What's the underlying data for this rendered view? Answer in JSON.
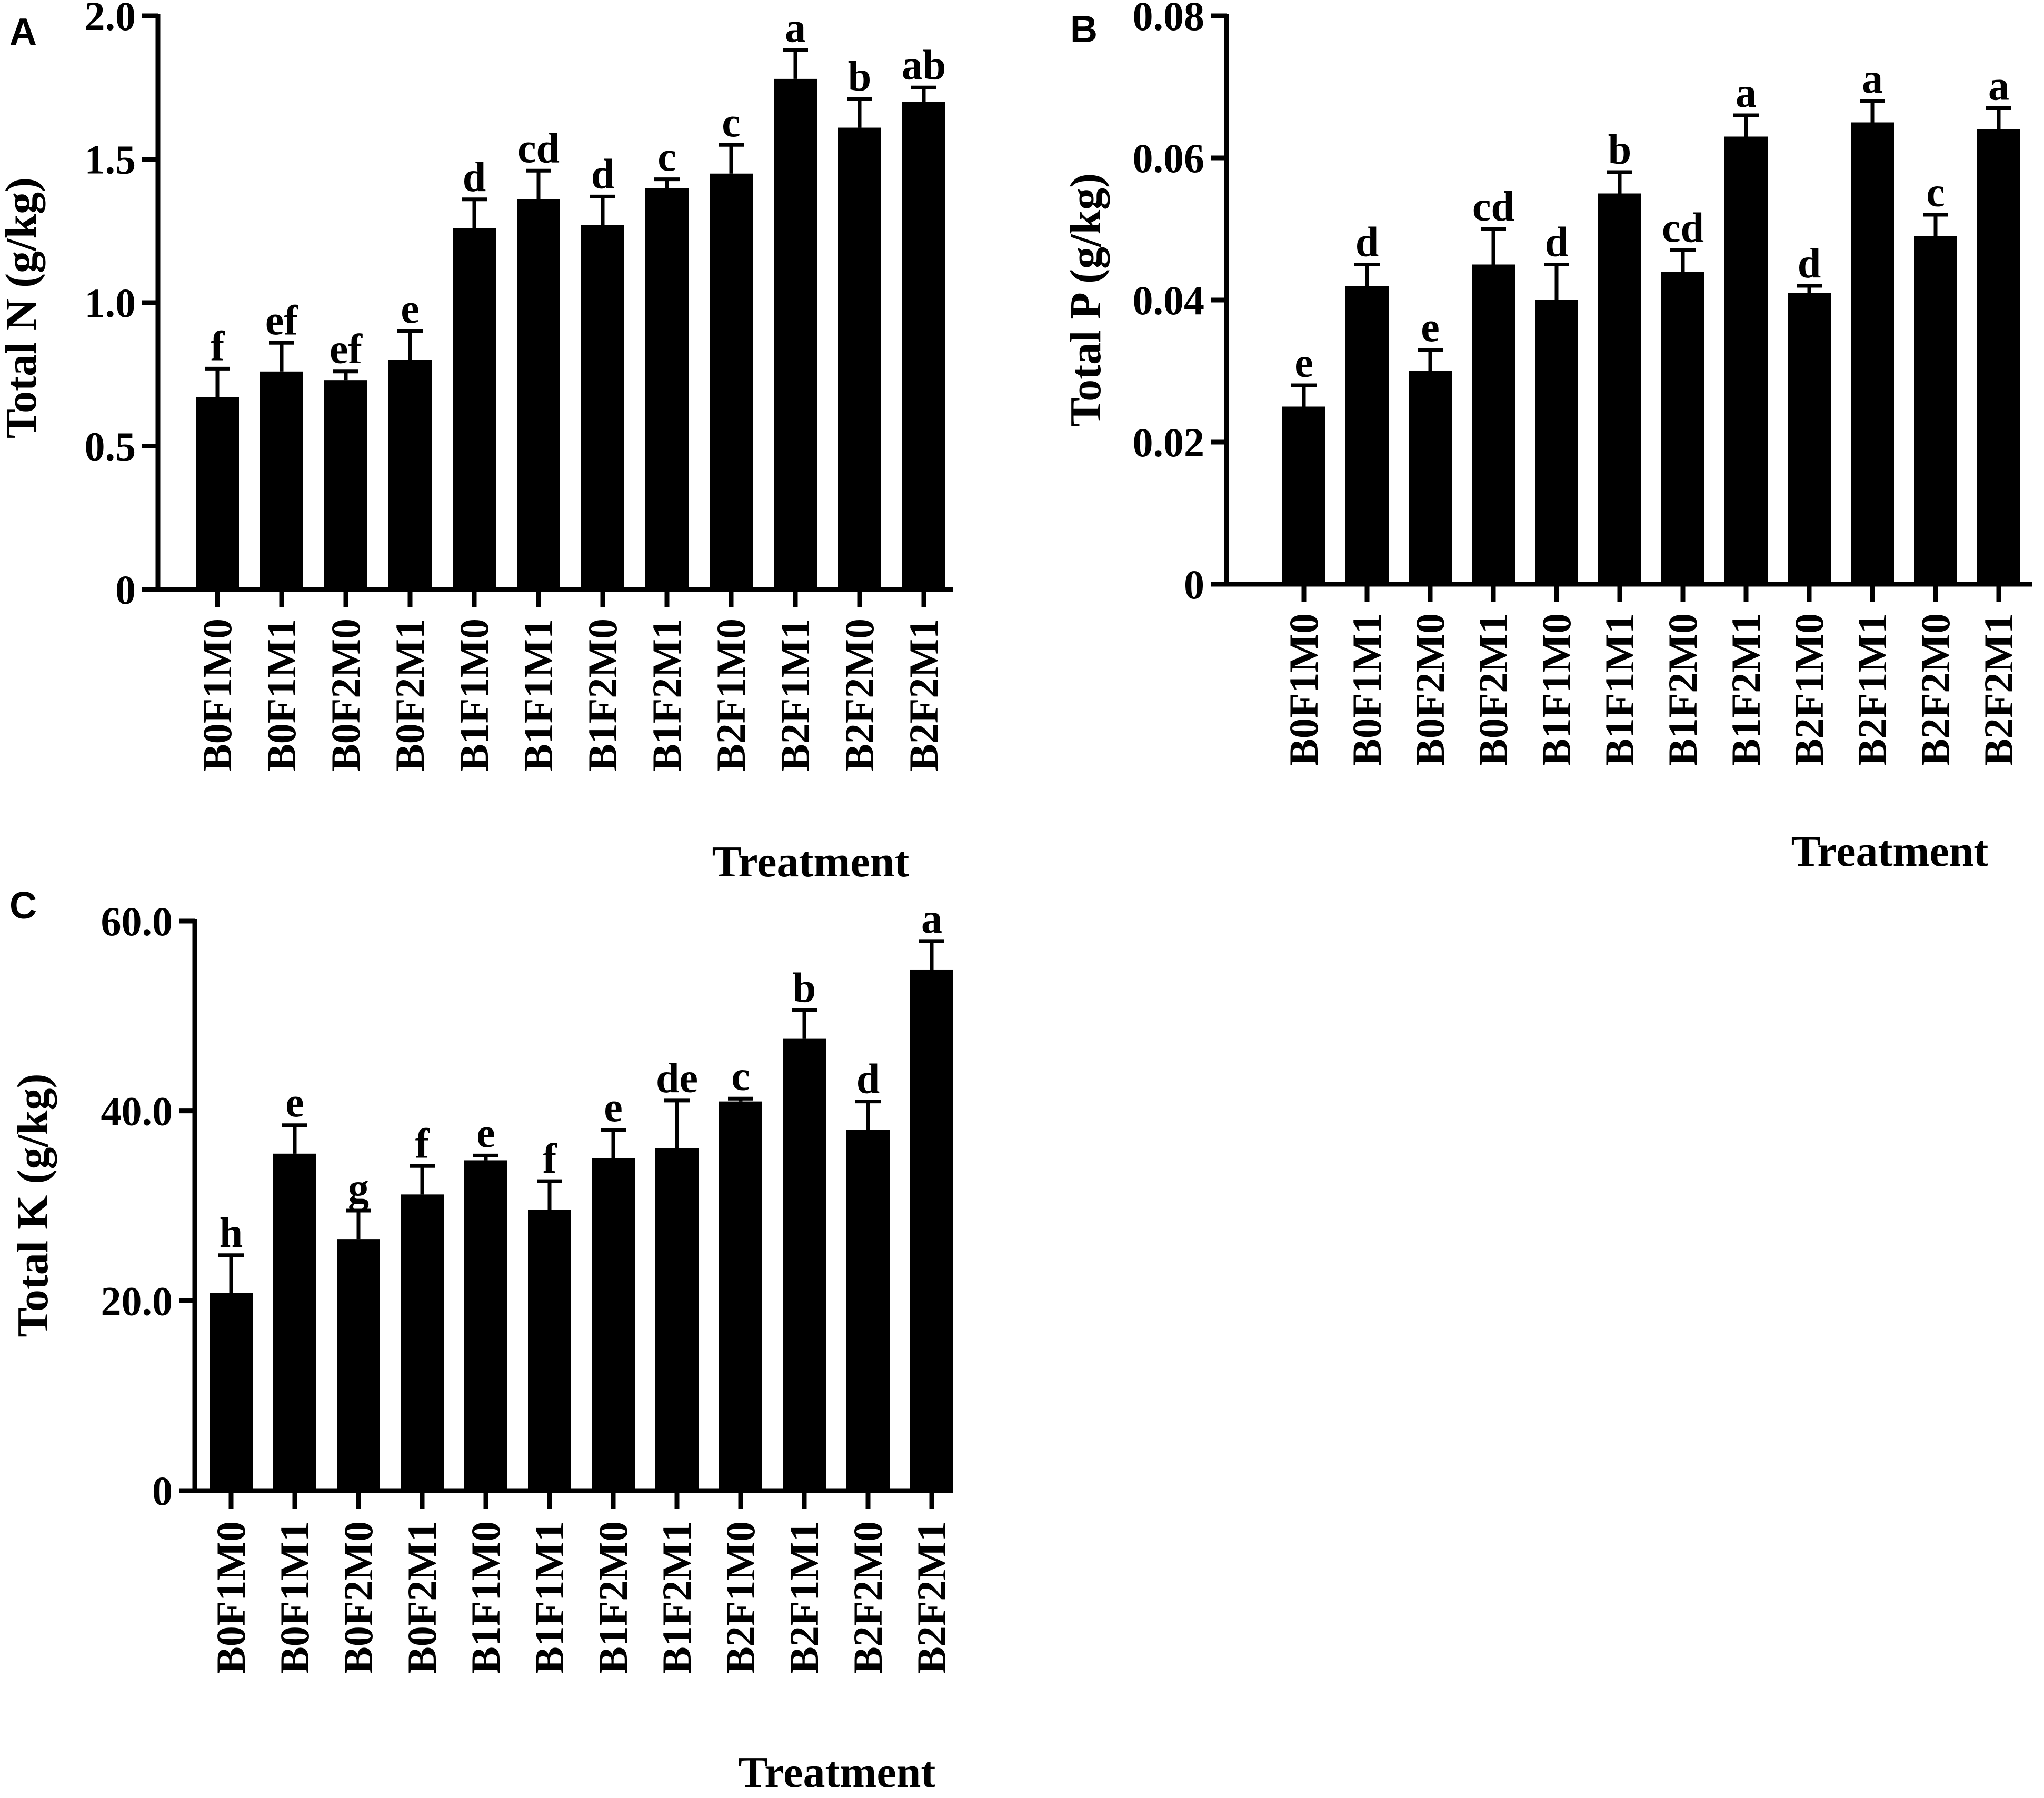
{
  "chart_data": [
    {
      "panel": "A",
      "type": "bar",
      "ylabel": "Total N (g/kg)",
      "xlabel": "Treatment",
      "ylim": [
        0,
        2.0
      ],
      "yticks": [
        "0",
        "0.5",
        "1.0",
        "1.5",
        "2.0"
      ],
      "ytick_values": [
        0,
        0.5,
        1.0,
        1.5,
        2.0
      ],
      "categories": [
        "B0F1M0",
        "B0F1M1",
        "B0F2M0",
        "B0F2M1",
        "B1F1M0",
        "B1F1M1",
        "B1F2M0",
        "B1F2M1",
        "B2F1M0",
        "B2F1M1",
        "B2F2M0",
        "B2F2M1"
      ],
      "values": [
        0.67,
        0.76,
        0.73,
        0.8,
        1.26,
        1.36,
        1.27,
        1.4,
        1.45,
        1.78,
        1.61,
        1.7
      ],
      "errors": [
        0.1,
        0.1,
        0.03,
        0.1,
        0.1,
        0.1,
        0.1,
        0.03,
        0.1,
        0.1,
        0.1,
        0.05
      ],
      "labels": [
        "f",
        "ef",
        "ef",
        "e",
        "d",
        "cd",
        "d",
        "c",
        "c",
        "a",
        "b",
        "ab"
      ]
    },
    {
      "panel": "B",
      "type": "bar",
      "ylabel": "Total P (g/kg)",
      "xlabel": "Treatment",
      "ylim": [
        0,
        0.08
      ],
      "yticks": [
        "0",
        "0.02",
        "0.04",
        "0.06",
        "0.08"
      ],
      "ytick_values": [
        0,
        0.02,
        0.04,
        0.06,
        0.08
      ],
      "categories": [
        "B0F1M0",
        "B0F1M1",
        "B0F2M0",
        "B0F2M1",
        "B1F1M0",
        "B1F1M1",
        "B1F2M0",
        "B1F2M1",
        "B2F1M0",
        "B2F1M1",
        "B2F2M0",
        "B2F2M1"
      ],
      "values": [
        0.025,
        0.042,
        0.03,
        0.045,
        0.04,
        0.055,
        0.044,
        0.063,
        0.041,
        0.065,
        0.049,
        0.064
      ],
      "errors": [
        0.003,
        0.003,
        0.003,
        0.005,
        0.005,
        0.003,
        0.003,
        0.003,
        0.001,
        0.003,
        0.003,
        0.003
      ],
      "labels": [
        "e",
        "d",
        "e",
        "cd",
        "d",
        "b",
        "cd",
        "a",
        "d",
        "a",
        "c",
        "a"
      ]
    },
    {
      "panel": "C",
      "type": "bar",
      "ylabel": "Total K (g/kg)",
      "xlabel": "Treatment",
      "ylim": [
        0,
        60.0
      ],
      "yticks": [
        "0",
        "20.0",
        "40.0",
        "60.0"
      ],
      "ytick_values": [
        0,
        20,
        40,
        60
      ],
      "categories": [
        "B0F1M0",
        "B0F1M1",
        "B0F2M0",
        "B0F2M1",
        "B1F1M0",
        "B1F1M1",
        "B1F2M0",
        "B1F2M1",
        "B2F1M0",
        "B2F1M1",
        "B2F2M0",
        "B2F2M1"
      ],
      "values": [
        20.8,
        35.5,
        26.5,
        31.2,
        34.8,
        29.6,
        35.0,
        36.1,
        41.0,
        47.6,
        38.0,
        54.9
      ],
      "errors": [
        4.0,
        3.0,
        3.0,
        3.0,
        0.5,
        3.0,
        3.0,
        5.0,
        0.3,
        3.0,
        3.0,
        3.0
      ],
      "labels": [
        "h",
        "e",
        "g",
        "f",
        "e",
        "f",
        "e",
        "de",
        "c",
        "b",
        "d",
        "a"
      ]
    }
  ]
}
